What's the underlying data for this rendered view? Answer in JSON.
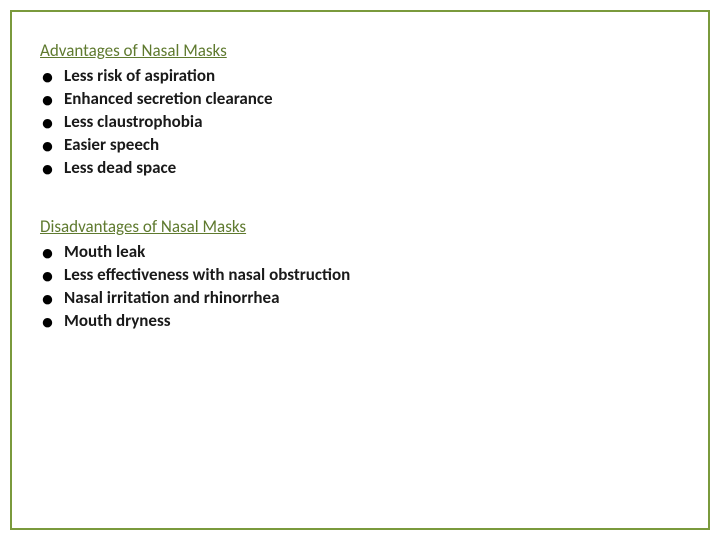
{
  "colors": {
    "border": "#7a9a3c",
    "heading": "#5f7a2f",
    "text": "#1a1a1a",
    "background": "#ffffff"
  },
  "typography": {
    "heading_fontsize": 17,
    "body_fontsize": 17,
    "body_weight": 600,
    "font_family": "Calibri, Arial, sans-serif"
  },
  "sections": [
    {
      "heading": "Advantages of Nasal Masks",
      "items": [
        "Less risk of aspiration",
        "Enhanced secretion clearance",
        "Less claustrophobia",
        "Easier speech",
        "Less dead space"
      ]
    },
    {
      "heading": "Disadvantages of Nasal Masks",
      "items": [
        "Mouth leak",
        "Less effectiveness with nasal obstruction",
        "Nasal irritation and rhinorrhea",
        "Mouth dryness"
      ]
    }
  ]
}
